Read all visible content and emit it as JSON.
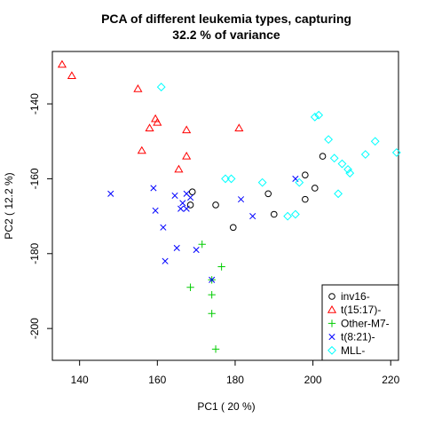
{
  "chart_data": {
    "type": "scatter",
    "title_line1": "PCA of different leukemia types, capturing",
    "title_line2": "32.2 % of variance",
    "xlabel": "PC1 ( 20 %)",
    "ylabel": "PC2 ( 12.2 %)",
    "xlim": [
      133,
      222
    ],
    "ylim": [
      -208.5,
      -126
    ],
    "xticks": [
      140,
      160,
      180,
      200,
      220
    ],
    "yticks": [
      -140,
      -160,
      -180,
      -200
    ],
    "grid": false,
    "legend_position": "bottom-right",
    "series": [
      {
        "name": "inv16-",
        "marker": "circle",
        "color": "#000000",
        "points": [
          [
            169,
            -163.5
          ],
          [
            168.5,
            -167
          ],
          [
            175,
            -167
          ],
          [
            179.5,
            -173
          ],
          [
            188.5,
            -164
          ],
          [
            190,
            -169.5
          ],
          [
            198,
            -159
          ],
          [
            198,
            -165.5
          ],
          [
            200.5,
            -162.5
          ],
          [
            202.5,
            -154
          ]
        ]
      },
      {
        "name": "t(15:17)-",
        "marker": "triangle",
        "color": "#ff0000",
        "points": [
          [
            135.5,
            -129.5
          ],
          [
            138,
            -132.5
          ],
          [
            155,
            -136
          ],
          [
            158,
            -146.5
          ],
          [
            159.5,
            -144
          ],
          [
            160,
            -145
          ],
          [
            156,
            -152.5
          ],
          [
            167.5,
            -147
          ],
          [
            165.5,
            -157.5
          ],
          [
            167.5,
            -154
          ],
          [
            181,
            -146.5
          ]
        ]
      },
      {
        "name": "Other-M7-",
        "marker": "plus",
        "color": "#00cc00",
        "points": [
          [
            171.5,
            -177.5
          ],
          [
            176.5,
            -183.5
          ],
          [
            168.5,
            -189
          ],
          [
            174,
            -191
          ],
          [
            174,
            -196
          ],
          [
            175,
            -205.5
          ],
          [
            174,
            -187
          ]
        ]
      },
      {
        "name": "t(8:21)-",
        "marker": "x",
        "color": "#0000ff",
        "points": [
          [
            148,
            -164
          ],
          [
            159,
            -162.5
          ],
          [
            159.5,
            -168.5
          ],
          [
            164.5,
            -164.5
          ],
          [
            166.5,
            -166.5
          ],
          [
            167.5,
            -164
          ],
          [
            168.5,
            -165
          ],
          [
            166,
            -168
          ],
          [
            167.5,
            -168
          ],
          [
            161.5,
            -173
          ],
          [
            165,
            -178.5
          ],
          [
            170,
            -179
          ],
          [
            162,
            -182
          ],
          [
            174,
            -187
          ],
          [
            181.5,
            -165.5
          ],
          [
            184.5,
            -170
          ],
          [
            195.5,
            -160
          ]
        ]
      },
      {
        "name": "MLL-",
        "marker": "diamond",
        "color": "#00ffff",
        "points": [
          [
            161,
            -135.5
          ],
          [
            177.5,
            -160
          ],
          [
            179,
            -160
          ],
          [
            187,
            -161
          ],
          [
            193.5,
            -170
          ],
          [
            195.5,
            -169.5
          ],
          [
            196.5,
            -161
          ],
          [
            200.5,
            -143.5
          ],
          [
            201.5,
            -143
          ],
          [
            204,
            -149.5
          ],
          [
            205.5,
            -154.5
          ],
          [
            207.5,
            -156
          ],
          [
            209,
            -157.5
          ],
          [
            209.5,
            -158.5
          ],
          [
            206.5,
            -164
          ],
          [
            213.5,
            -153.5
          ],
          [
            216,
            -150
          ],
          [
            221.5,
            -153
          ]
        ]
      }
    ]
  }
}
